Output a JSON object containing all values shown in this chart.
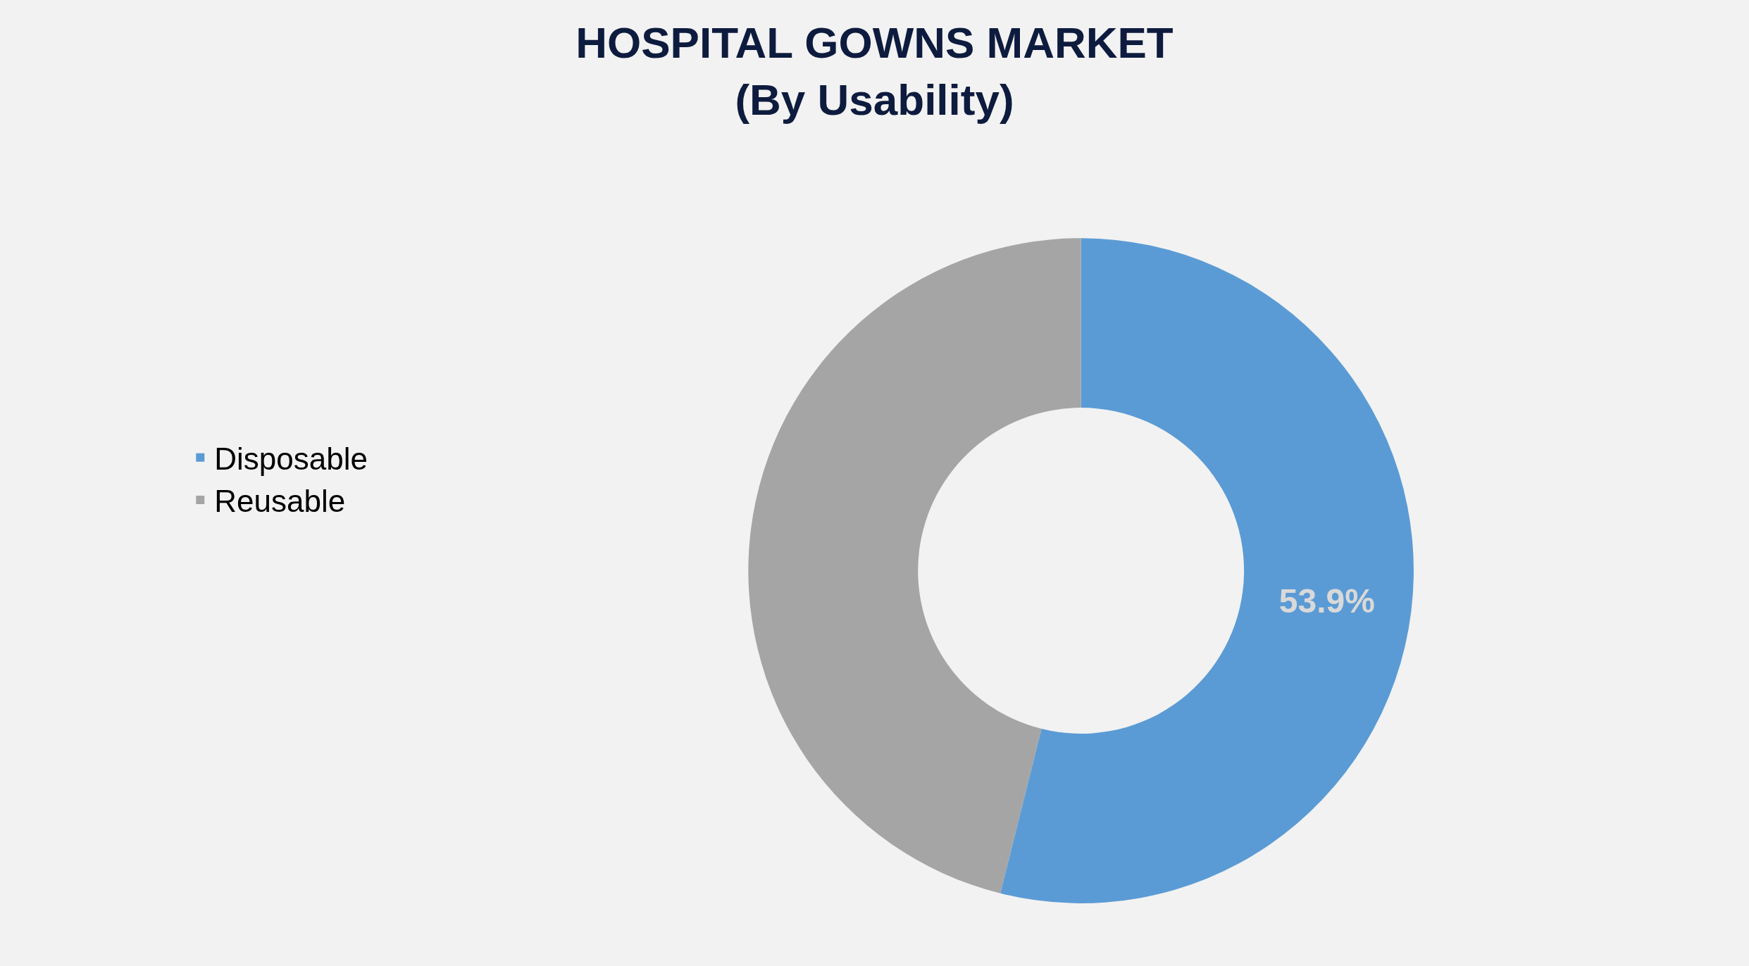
{
  "chart_data": {
    "type": "donut",
    "title": "HOSPITAL GOWNS MARKET",
    "subtitle": "(By Usability)",
    "categories": [
      "Disposable",
      "Reusable"
    ],
    "values": [
      53.9,
      46.1
    ],
    "colors": [
      "#5b9bd5",
      "#a5a5a5"
    ],
    "value_labels": [
      "53.9%",
      null
    ],
    "legend": "left"
  }
}
